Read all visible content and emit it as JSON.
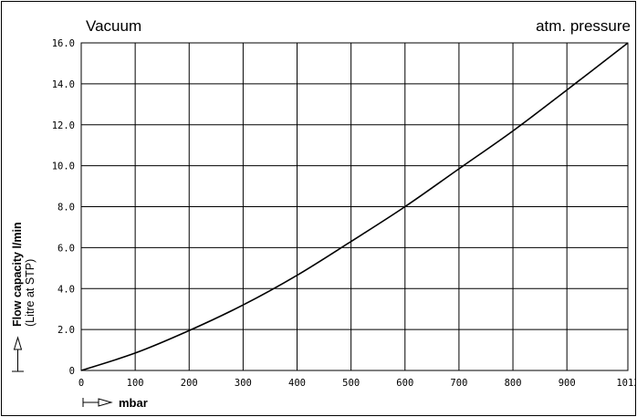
{
  "chart_data": {
    "type": "line",
    "title": "",
    "corner_left": "Vacuum",
    "corner_right": "atm. pressure",
    "ylabel": "Flow capacity l/min",
    "ylabel_sub": "(Litre at STP)",
    "xlabel": "mbar",
    "xlim": [
      0,
      1013
    ],
    "ylim": [
      0,
      16
    ],
    "grid": true,
    "x_ticks": [
      0,
      100,
      200,
      300,
      400,
      500,
      600,
      700,
      800,
      900,
      1013
    ],
    "x_tick_labels": [
      "0",
      "100",
      "200",
      "300",
      "400",
      "500",
      "600",
      "700",
      "800",
      "900",
      "1013"
    ],
    "y_ticks": [
      0,
      2,
      4,
      6,
      8,
      10,
      12,
      14,
      16
    ],
    "y_tick_labels": [
      "0",
      "2.0",
      "4.0",
      "6.0",
      "8.0",
      "10.0",
      "12.0",
      "14.0",
      "16.0"
    ],
    "series": [
      {
        "color": "#000000",
        "x": [
          0,
          100,
          200,
          300,
          400,
          500,
          600,
          700,
          800,
          900,
          1013
        ],
        "y": [
          0,
          0.85,
          1.95,
          3.2,
          4.65,
          6.3,
          8.0,
          9.85,
          11.7,
          13.7,
          16.0
        ]
      }
    ]
  }
}
